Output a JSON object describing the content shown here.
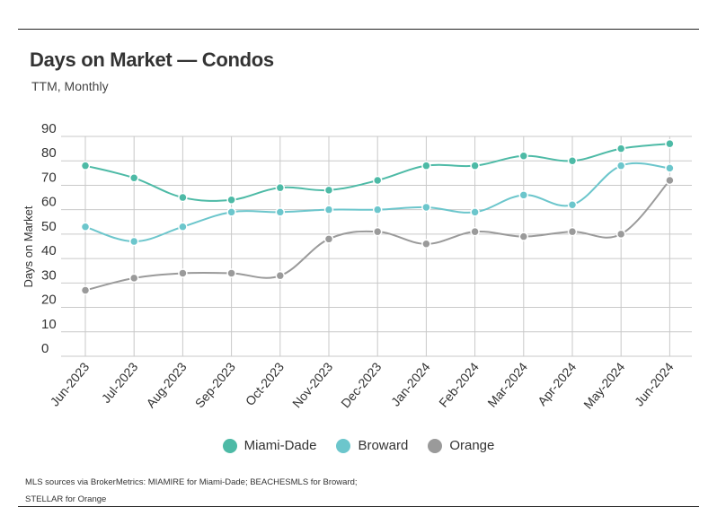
{
  "header": {
    "title": "Days on Market — Condos",
    "subtitle": "TTM, Monthly"
  },
  "chart_data": {
    "type": "line",
    "title": "Days on Market — Condos",
    "subtitle": "TTM, Monthly",
    "xlabel": "",
    "ylabel": "Days on Market",
    "ylim": [
      0,
      90
    ],
    "yticks": [
      0,
      10,
      20,
      30,
      40,
      50,
      60,
      70,
      80,
      90
    ],
    "grid": true,
    "legend_position": "bottom",
    "categories": [
      "Jun-2023",
      "Jul-2023",
      "Aug-2023",
      "Sep-2023",
      "Oct-2023",
      "Nov-2023",
      "Dec-2023",
      "Jan-2024",
      "Feb-2024",
      "Mar-2024",
      "Apr-2024",
      "May-2024",
      "Jun-2024"
    ],
    "series": [
      {
        "name": "Miami-Dade",
        "color": "#4dbaa6",
        "values": [
          78,
          73,
          65,
          64,
          69,
          68,
          72,
          78,
          78,
          82,
          80,
          85,
          87
        ]
      },
      {
        "name": "Broward",
        "color": "#6cc6cc",
        "values": [
          53,
          47,
          53,
          59,
          59,
          60,
          60,
          61,
          59,
          66,
          62,
          78,
          77
        ]
      },
      {
        "name": "Orange",
        "color": "#9a9a9a",
        "values": [
          27,
          32,
          34,
          34,
          33,
          48,
          51,
          46,
          51,
          49,
          51,
          50,
          72
        ]
      }
    ]
  },
  "source": {
    "line1": "MLS sources via BrokerMetrics: MIAMIRE for Miami-Dade; BEACHESMLS for Broward;",
    "line2": "STELLAR for Orange"
  }
}
